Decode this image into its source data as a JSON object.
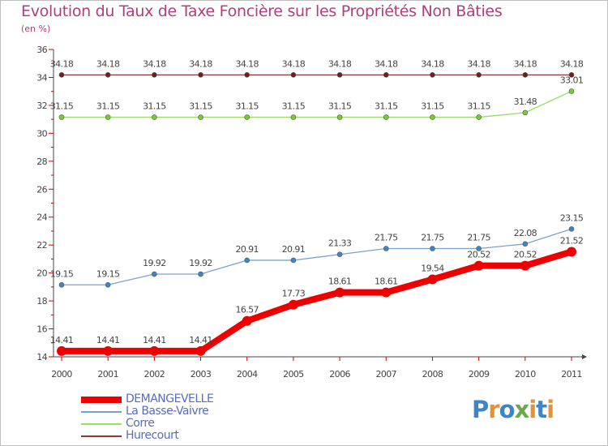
{
  "chart_data": {
    "type": "line",
    "title": "Evolution du Taux de Taxe Foncière sur les Propriétés Non Bâties",
    "ylabel": "(en %)",
    "xlabel": "",
    "ylim": [
      14,
      36
    ],
    "yticks": [
      14,
      16,
      18,
      20,
      22,
      24,
      26,
      28,
      30,
      32,
      34,
      36
    ],
    "x": [
      "2000",
      "2001",
      "2002",
      "2003",
      "2004",
      "2005",
      "2006",
      "2007",
      "2008",
      "2009",
      "2010",
      "2011"
    ],
    "series": [
      {
        "name": "DEMANGEVELLE",
        "color": "#ee0000",
        "point_color": "#ee0000",
        "values": [
          14.41,
          14.41,
          14.41,
          14.41,
          16.57,
          17.73,
          18.61,
          18.61,
          19.54,
          20.52,
          20.52,
          21.52
        ],
        "labels": [
          "14.41",
          "14.41",
          "14.41",
          "14.41",
          "16.57",
          "17.73",
          "18.61",
          "18.61",
          "19.54",
          "20.52",
          "20.52",
          "21.52"
        ]
      },
      {
        "name": "La Basse-Vaivre",
        "color": "#7aa3cc",
        "point_color": "#3d85c6",
        "values": [
          19.15,
          19.15,
          19.92,
          19.92,
          20.91,
          20.91,
          21.33,
          21.75,
          21.75,
          21.75,
          22.08,
          23.15
        ],
        "labels": [
          "19.15",
          "19.15",
          "19.92",
          "19.92",
          "20.91",
          "20.91",
          "21.33",
          "21.75",
          "21.75",
          "21.75",
          "22.08",
          "23.15"
        ]
      },
      {
        "name": "Corre",
        "color": "#99dd66",
        "point_color": "#77cc33",
        "values": [
          31.15,
          31.15,
          31.15,
          31.15,
          31.15,
          31.15,
          31.15,
          31.15,
          31.15,
          31.15,
          31.48,
          33.01
        ],
        "labels": [
          "31.15",
          "31.15",
          "31.15",
          "31.15",
          "31.15",
          "31.15",
          "31.15",
          "31.15",
          "31.15",
          "31.15",
          "31.48",
          "33.01"
        ]
      },
      {
        "name": "Hurecourt",
        "color": "#8b3a3a",
        "point_color": "#6b1f1f",
        "values": [
          34.18,
          34.18,
          34.18,
          34.18,
          34.18,
          34.18,
          34.18,
          34.18,
          34.18,
          34.18,
          34.18,
          34.18
        ],
        "labels": [
          "34.18",
          "34.18",
          "34.18",
          "34.18",
          "34.18",
          "34.18",
          "34.18",
          "34.18",
          "34.18",
          "34.18",
          "34.18",
          "34.18"
        ]
      }
    ],
    "legend": "bottom-left",
    "grid": false
  },
  "logo": {
    "text": "Proxiti",
    "letters": [
      "P",
      "r",
      "o",
      "x",
      "i",
      "t",
      "i"
    ],
    "colors": [
      "#3d85c6",
      "#e69138",
      "#3d85c6",
      "#6aa84f",
      "#e69138",
      "#3d85c6",
      "#e69138"
    ]
  }
}
